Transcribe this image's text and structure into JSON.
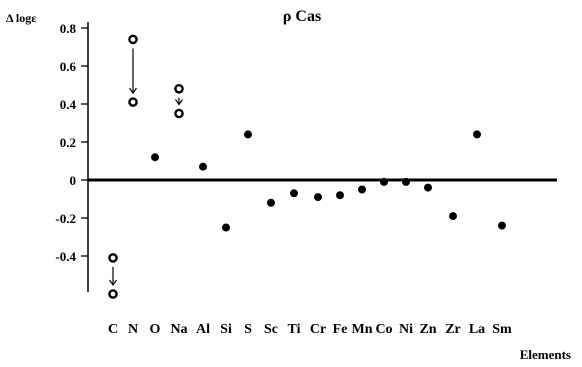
{
  "chart_data": {
    "type": "scatter",
    "title": "ρ Cas",
    "ylabel": "Δ logε",
    "xlabel": "Elements",
    "ylim": [
      -0.6,
      0.8
    ],
    "yticks": [
      {
        "v": 0.8,
        "label": "0.8"
      },
      {
        "v": 0.6,
        "label": "0.6"
      },
      {
        "v": 0.4,
        "label": "0.4"
      },
      {
        "v": 0.2,
        "label": "0.2"
      },
      {
        "v": 0,
        "label": "0"
      },
      {
        "v": -0.2,
        "label": "-0.2"
      },
      {
        "v": -0.4,
        "label": "-0.4"
      }
    ],
    "categories": [
      "C",
      "N",
      "O",
      "Na",
      "Al",
      "Si",
      "S",
      "Sc",
      "Ti",
      "Cr",
      "Fe",
      "Mn",
      "Co",
      "Ni",
      "Zn",
      "Zr",
      "La",
      "Sm"
    ],
    "points": [
      {
        "element": "C",
        "value": -0.41,
        "marker": "open"
      },
      {
        "element": "C",
        "value": -0.6,
        "marker": "open"
      },
      {
        "element": "N",
        "value": 0.74,
        "marker": "open"
      },
      {
        "element": "N",
        "value": 0.41,
        "marker": "open"
      },
      {
        "element": "O",
        "value": 0.12,
        "marker": "filled"
      },
      {
        "element": "Na",
        "value": 0.48,
        "marker": "open"
      },
      {
        "element": "Na",
        "value": 0.35,
        "marker": "open"
      },
      {
        "element": "Al",
        "value": 0.07,
        "marker": "filled"
      },
      {
        "element": "Si",
        "value": -0.25,
        "marker": "filled"
      },
      {
        "element": "S",
        "value": 0.24,
        "marker": "filled"
      },
      {
        "element": "Sc",
        "value": -0.12,
        "marker": "filled"
      },
      {
        "element": "Ti",
        "value": -0.07,
        "marker": "filled"
      },
      {
        "element": "Cr",
        "value": -0.09,
        "marker": "filled"
      },
      {
        "element": "Fe",
        "value": -0.08,
        "marker": "filled"
      },
      {
        "element": "Mn",
        "value": -0.05,
        "marker": "filled"
      },
      {
        "element": "Co",
        "value": -0.01,
        "marker": "filled"
      },
      {
        "element": "Ni",
        "value": -0.01,
        "marker": "filled"
      },
      {
        "element": "Zn",
        "value": -0.04,
        "marker": "filled"
      },
      {
        "element": "Zr",
        "value": -0.19,
        "marker": "filled"
      },
      {
        "element": "La",
        "value": 0.24,
        "marker": "filled"
      },
      {
        "element": "Sm",
        "value": -0.24,
        "marker": "filled"
      }
    ],
    "arrows": [
      {
        "element": "C",
        "from": -0.41,
        "to": -0.6
      },
      {
        "element": "N",
        "from": 0.74,
        "to": 0.41
      },
      {
        "element": "Na",
        "from": 0.48,
        "to": 0.35
      }
    ],
    "grid": false,
    "legend": "none"
  }
}
